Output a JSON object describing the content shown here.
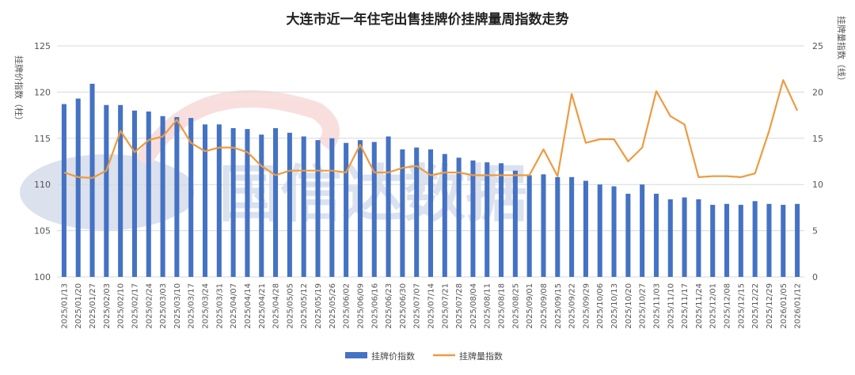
{
  "colors": {
    "bar": "#4472c4",
    "line": "#ed9b40",
    "watermark_blue": "#3f5fa0",
    "watermark_red": "#d9534f"
  },
  "watermark": {
    "text": "GXD 国信达数据"
  },
  "chart_data": {
    "type": "bar",
    "title": "大连市近一年住宅出售挂牌价挂牌量周指数走势",
    "ylabel_left": "挂牌价指数（柱）",
    "ylabel_right": "挂牌量指数（线）",
    "ylim_left": [
      100,
      125
    ],
    "ylim_right": [
      0,
      25
    ],
    "yticks_left": [
      "100",
      "105",
      "110",
      "115",
      "120",
      "125"
    ],
    "yticks_right": [
      "0",
      "5",
      "10",
      "15",
      "20",
      "25"
    ],
    "grid": true,
    "legend_position": "bottom",
    "categories": [
      "2025/01/13",
      "2025/01/20",
      "2025/01/27",
      "2025/02/03",
      "2025/02/10",
      "2025/02/17",
      "2025/02/24",
      "2025/03/03",
      "2025/03/10",
      "2025/03/17",
      "2025/03/24",
      "2025/03/31",
      "2025/04/07",
      "2025/04/14",
      "2025/04/21",
      "2025/04/28",
      "2025/05/05",
      "2025/05/12",
      "2025/05/19",
      "2025/05/26",
      "2025/06/02",
      "2025/06/09",
      "2025/06/16",
      "2025/06/23",
      "2025/06/30",
      "2025/07/07",
      "2025/07/14",
      "2025/07/21",
      "2025/07/28",
      "2025/08/04",
      "2025/08/11",
      "2025/08/18",
      "2025/08/25",
      "2025/09/01",
      "2025/09/08",
      "2025/09/15",
      "2025/09/22",
      "2025/09/29",
      "2025/10/06",
      "2025/10/13",
      "2025/10/20",
      "2025/10/27",
      "2025/11/03",
      "2025/11/10",
      "2025/11/17",
      "2025/11/24",
      "2025/12/01",
      "2025/12/08",
      "2025/12/15",
      "2025/12/22",
      "2025/12/29",
      "2026/01/05",
      "2026/01/12"
    ],
    "series": [
      {
        "name": "挂牌价指数",
        "kind": "bar",
        "axis": "left",
        "values": [
          118.7,
          119.3,
          120.9,
          118.6,
          118.6,
          118.0,
          117.9,
          117.4,
          117.3,
          117.2,
          116.5,
          116.5,
          116.1,
          116.0,
          115.4,
          116.1,
          115.6,
          115.2,
          114.8,
          115.0,
          114.5,
          114.8,
          114.6,
          115.2,
          113.8,
          114.0,
          113.8,
          113.3,
          112.9,
          112.6,
          112.4,
          112.3,
          111.5,
          111.0,
          111.1,
          110.8,
          110.8,
          110.4,
          110.0,
          109.8,
          109.0,
          110.0,
          109.0,
          108.4,
          108.6,
          108.4,
          107.8,
          107.9,
          107.8,
          108.2,
          107.9,
          107.8,
          107.9
        ]
      },
      {
        "name": "挂牌量指数",
        "kind": "line",
        "axis": "right",
        "values": [
          11.3,
          10.8,
          10.7,
          11.5,
          15.8,
          13.5,
          14.8,
          15.2,
          17.0,
          14.5,
          13.6,
          14.0,
          14.0,
          13.5,
          12.0,
          11.0,
          11.5,
          11.5,
          11.5,
          11.5,
          11.3,
          14.3,
          11.3,
          11.3,
          11.8,
          12.0,
          11.0,
          11.3,
          11.3,
          11.0,
          11.0,
          11.0,
          11.0,
          11.0,
          13.8,
          10.9,
          19.8,
          14.5,
          14.9,
          14.9,
          12.5,
          14.0,
          20.1,
          17.4,
          16.5,
          10.8,
          10.9,
          10.9,
          10.8,
          11.2,
          15.8,
          21.3,
          18.0
        ]
      }
    ]
  }
}
